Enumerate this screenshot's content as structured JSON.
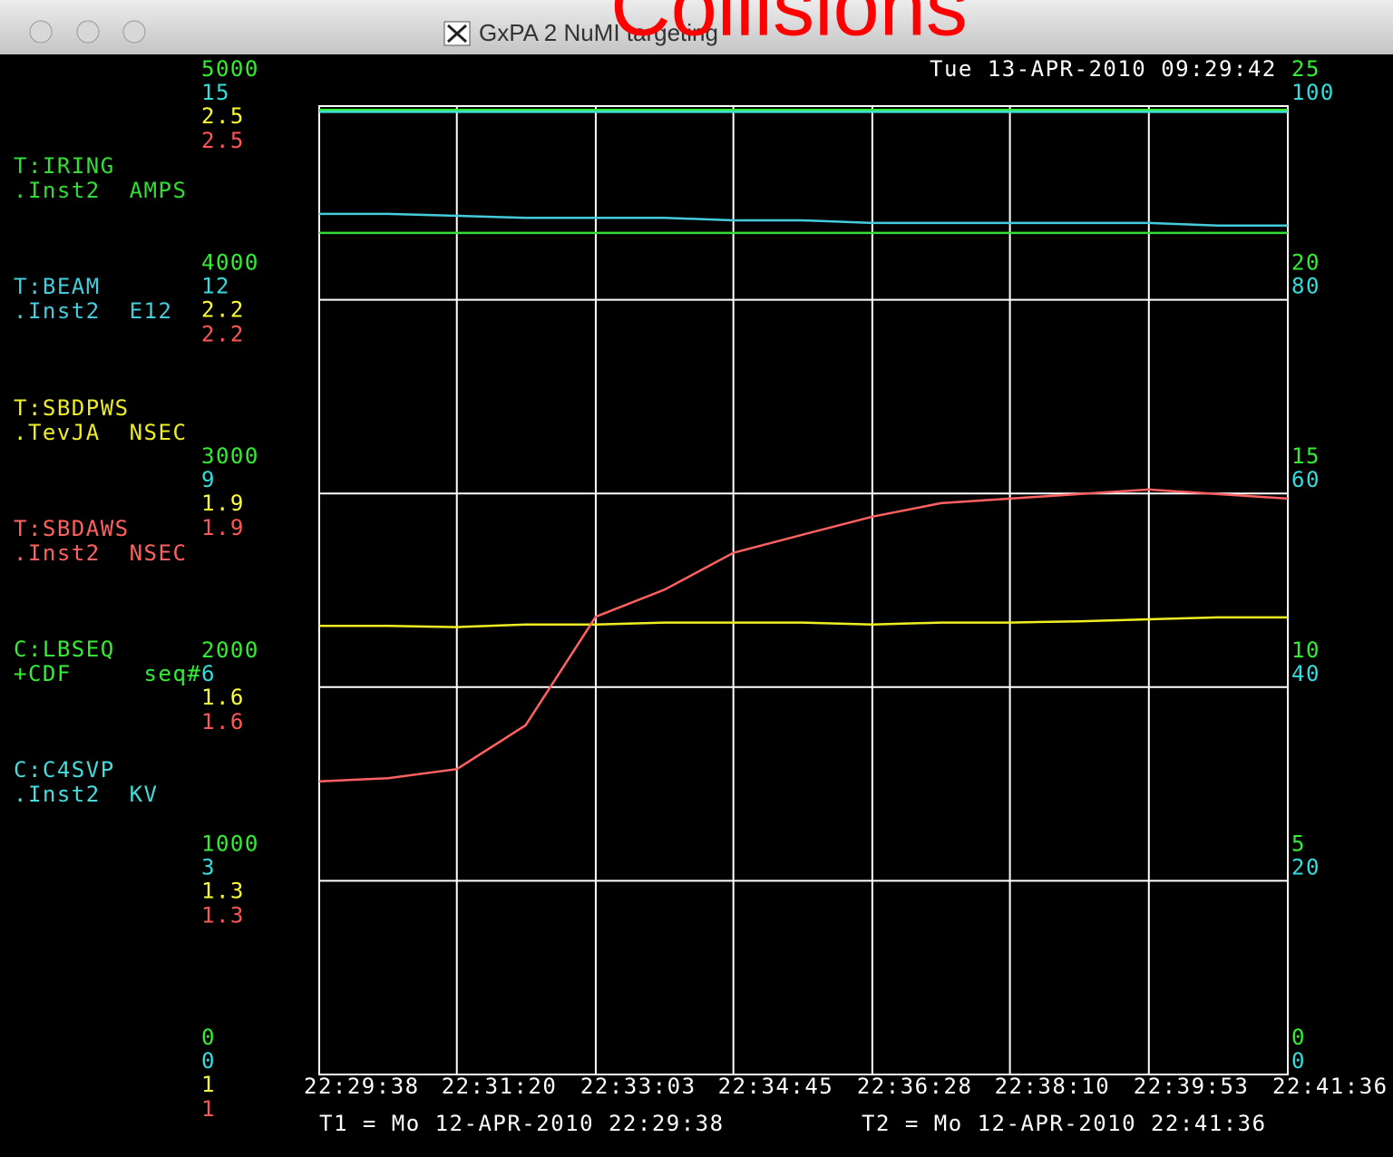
{
  "window": {
    "title": "GxPA 2 NuMI targeting",
    "timestamp": "Tue 13-APR-2010 09:29:42",
    "t1": "T1 = Mo 12-APR-2010 22:29:38",
    "t2": "T2 = Mo 12-APR-2010 22:41:36"
  },
  "chart_data": {
    "type": "line",
    "title": "Collisions",
    "xlim": [
      "22:29:38",
      "22:41:36"
    ],
    "xticks": [
      "22:29:38",
      "22:31:20",
      "22:33:03",
      "22:34:45",
      "22:36:28",
      "22:38:10",
      "22:39:53",
      "22:41:36"
    ],
    "x": [
      "22:29:38",
      "22:30:29",
      "22:31:20",
      "22:32:11",
      "22:33:03",
      "22:33:54",
      "22:34:45",
      "22:35:36",
      "22:36:28",
      "22:37:19",
      "22:38:10",
      "22:39:01",
      "22:39:53",
      "22:40:44",
      "22:41:36"
    ],
    "grid": true,
    "axes": [
      {
        "side": "left",
        "color": "#33ee33",
        "ylim": [
          0,
          5000
        ],
        "yticks": [
          5000,
          4000,
          3000,
          2000,
          1000,
          0
        ]
      },
      {
        "side": "left",
        "color": "#33dddd",
        "ylim": [
          0,
          15
        ],
        "yticks": [
          15,
          12,
          9,
          6,
          3,
          0
        ]
      },
      {
        "side": "left",
        "color": "#ffff33",
        "ylim": [
          1,
          2.5
        ],
        "yticks": [
          2.5,
          2.2,
          1.9,
          1.6,
          1.3,
          1
        ]
      },
      {
        "side": "left",
        "color": "#ff5555",
        "ylim": [
          1,
          2.5
        ],
        "yticks": [
          2.5,
          2.2,
          1.9,
          1.6,
          1.3,
          1
        ]
      },
      {
        "side": "right",
        "color": "#33ee33",
        "ylim": [
          0,
          25
        ],
        "yticks": [
          25,
          20,
          15,
          10,
          5,
          0
        ]
      },
      {
        "side": "right",
        "color": "#33dddd",
        "ylim": [
          0,
          100
        ],
        "yticks": [
          100,
          80,
          60,
          40,
          20,
          0
        ]
      }
    ],
    "series": [
      {
        "name": "T:IRING",
        "detail": ".Inst2  AMPS",
        "color": "#33dd33",
        "axis": 0,
        "values": [
          4345,
          4345,
          4345,
          4345,
          4345,
          4345,
          4345,
          4345,
          4345,
          4345,
          4345,
          4345,
          4345,
          4345,
          4345
        ]
      },
      {
        "name": "T:BEAM",
        "detail": ".Inst2  E12",
        "color": "#44ccdd",
        "axis": 1,
        "values": [
          13.33,
          13.33,
          13.3,
          13.27,
          13.27,
          13.27,
          13.23,
          13.23,
          13.19,
          13.19,
          13.19,
          13.19,
          13.19,
          13.15,
          13.15
        ]
      },
      {
        "name": "T:SBDPWS",
        "detail": ".TevJA  NSEC",
        "color": "#eeee22",
        "axis": 2,
        "values": [
          1.695,
          1.695,
          1.693,
          1.697,
          1.697,
          1.7,
          1.7,
          1.7,
          1.697,
          1.7,
          1.7,
          1.702,
          1.705,
          1.708,
          1.708
        ]
      },
      {
        "name": "T:SBDAWS",
        "detail": ".Inst2  NSEC",
        "color": "#ff6060",
        "axis": 3,
        "values": [
          1.454,
          1.459,
          1.473,
          1.541,
          1.709,
          1.751,
          1.808,
          1.836,
          1.864,
          1.885,
          1.892,
          1.899,
          1.906,
          1.899,
          1.892
        ]
      },
      {
        "name": "C:LBSEQ",
        "detail": "+CDF     seq#",
        "color": "#33ee33",
        "axis": 4,
        "values": [
          24.9,
          24.9,
          24.9,
          24.9,
          24.9,
          24.9,
          24.9,
          24.9,
          24.9,
          24.9,
          24.9,
          24.9,
          24.9,
          24.9,
          24.9
        ]
      },
      {
        "name": "C:C4SVP",
        "detail": ".Inst2  KV",
        "color": "#44dddd",
        "axis": 5,
        "values": [
          99.4,
          99.4,
          99.4,
          99.4,
          99.4,
          99.4,
          99.4,
          99.4,
          99.4,
          99.4,
          99.4,
          99.4,
          99.4,
          99.4,
          99.4
        ]
      }
    ]
  }
}
